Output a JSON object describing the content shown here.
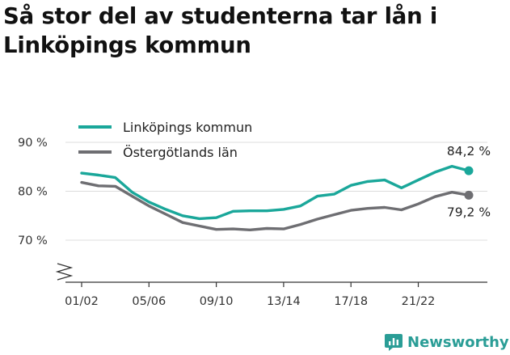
{
  "title": "Så stor del av studenterna tar lån i Linköpings kommun",
  "brand": {
    "name": "Newsworthy",
    "accent": "#2a9d96",
    "icon": "newsworthy-logo-icon"
  },
  "chart_data": {
    "type": "line",
    "title": "Så stor del av studenterna tar lån i Linköpings kommun",
    "xlabel": "",
    "ylabel": "",
    "x": [
      "01/02",
      "02/03",
      "03/04",
      "04/05",
      "05/06",
      "06/07",
      "07/08",
      "08/09",
      "09/10",
      "10/11",
      "11/12",
      "12/13",
      "13/14",
      "14/15",
      "15/16",
      "16/17",
      "17/18",
      "18/19",
      "19/20",
      "20/21",
      "21/22",
      "22/23",
      "23/24",
      "24/25"
    ],
    "x_tick_labels": [
      "01/02",
      "05/06",
      "09/10",
      "13/14",
      "17/18",
      "21/22"
    ],
    "y_ticks": [
      70,
      80,
      90
    ],
    "y_tick_labels": [
      "70 %",
      "80 %",
      "90 %"
    ],
    "ylim": [
      61,
      95
    ],
    "axis_break": true,
    "grid": true,
    "legend_position": "top-left",
    "series": [
      {
        "name": "Linköpings kommun",
        "color": "#1aa79a",
        "values": [
          83.7,
          83.3,
          82.8,
          79.8,
          77.8,
          76.3,
          75.0,
          74.4,
          74.6,
          75.9,
          76.0,
          76.0,
          76.3,
          77.0,
          79.0,
          79.4,
          81.2,
          82.0,
          82.3,
          80.7,
          82.3,
          83.9,
          85.1,
          84.2
        ],
        "end_label": "84,2 %"
      },
      {
        "name": "Östergötlands län",
        "color": "#6e6e72",
        "values": [
          81.8,
          81.1,
          81.0,
          79.0,
          77.0,
          75.3,
          73.6,
          72.9,
          72.2,
          72.3,
          72.1,
          72.4,
          72.3,
          73.2,
          74.3,
          75.2,
          76.1,
          76.5,
          76.7,
          76.2,
          77.4,
          78.9,
          79.8,
          79.2
        ],
        "end_label": "79,2 %"
      }
    ]
  }
}
